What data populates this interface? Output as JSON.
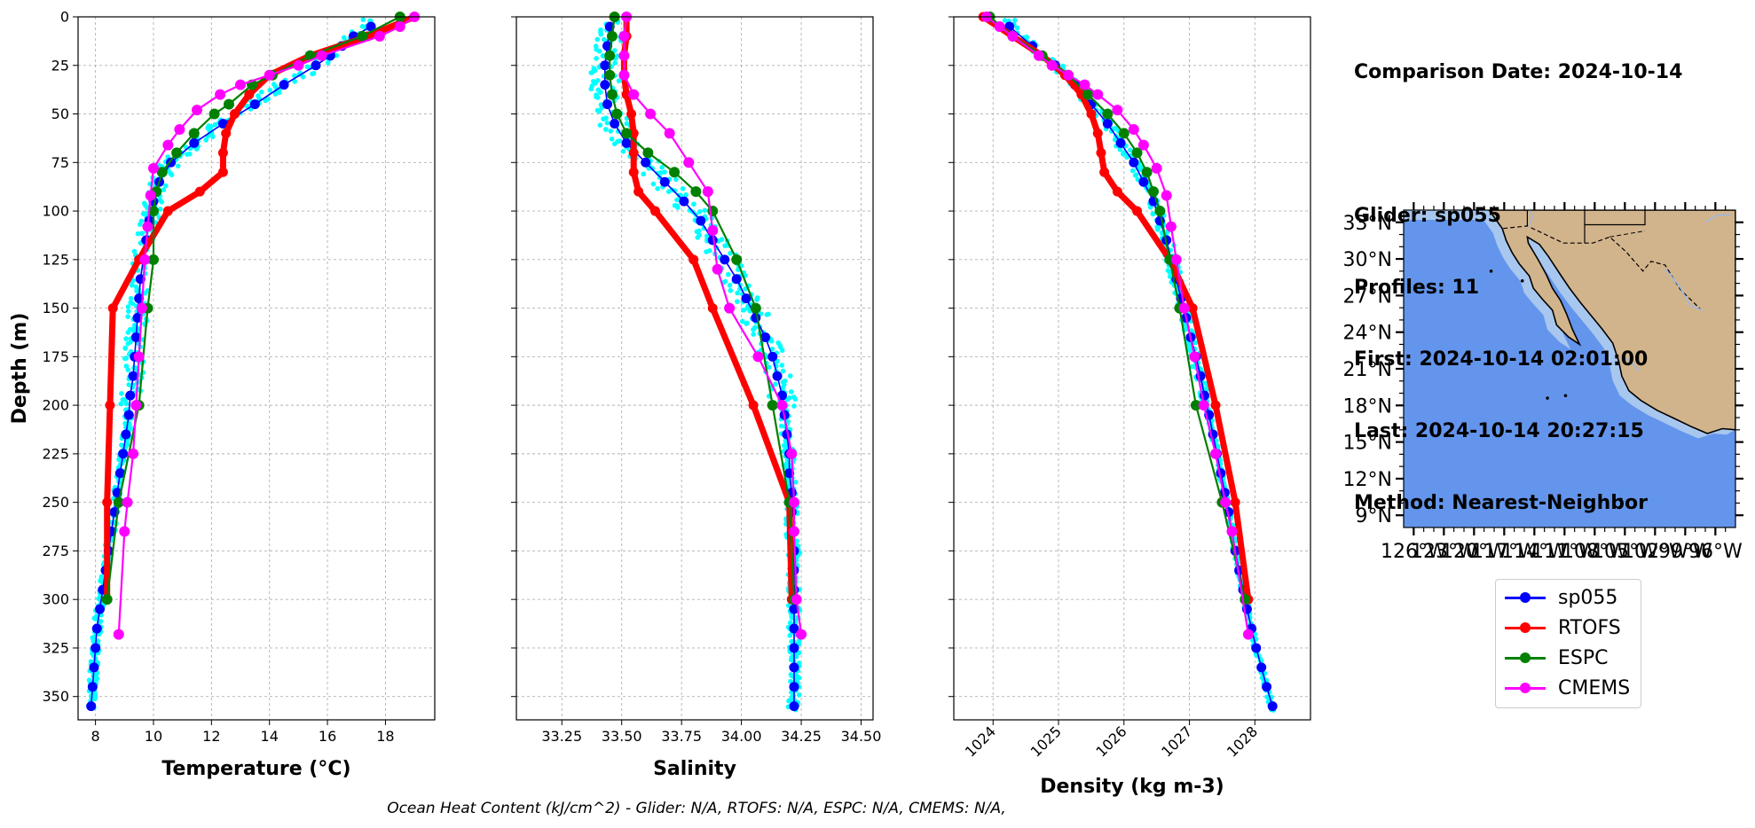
{
  "info": {
    "comparison_date": "Comparison Date: 2024-10-14",
    "glider": "Glider: sp055",
    "profiles": "Profiles: 11",
    "first": "First: 2024-10-14 02:01:00",
    "last": "Last: 2024-10-14 20:27:15",
    "method": "Method: Nearest-Neighbor"
  },
  "footer": "Ocean Heat Content (kJ/cm^2) - Glider: N/A,  RTOFS: N/A,  ESPC: N/A,  CMEMS: N/A,",
  "colors": {
    "glider": "#0000ff",
    "glider_points": "#00ffff",
    "rtofs": "#ff0000",
    "espc": "#008000",
    "cmems": "#ff00ff",
    "ocean": "#6495ed",
    "land": "#d2b48c",
    "shelf": "#a7c7ef"
  },
  "legend": [
    {
      "label": "sp055",
      "color": "#0000ff"
    },
    {
      "label": "RTOFS",
      "color": "#ff0000"
    },
    {
      "label": "ESPC",
      "color": "#008000"
    },
    {
      "label": "CMEMS",
      "color": "#ff00ff"
    }
  ],
  "chart_data": [
    {
      "type": "line",
      "xlabel": "Temperature (°C)",
      "ylabel": "Depth (m)",
      "xlim": [
        7.4,
        19.7
      ],
      "ylim": [
        362,
        0
      ],
      "xticks": [
        8,
        10,
        12,
        14,
        16,
        18
      ],
      "yticks": [
        0,
        25,
        50,
        75,
        100,
        125,
        150,
        175,
        200,
        225,
        250,
        275,
        300,
        325,
        350
      ],
      "grid": true,
      "series": [
        {
          "name": "sp055",
          "depth": [
            5,
            10,
            15,
            20,
            25,
            35,
            45,
            55,
            65,
            75,
            85,
            95,
            105,
            115,
            125,
            135,
            145,
            155,
            165,
            175,
            185,
            195,
            205,
            215,
            225,
            235,
            245,
            255,
            265,
            275,
            285,
            295,
            305,
            315,
            325,
            335,
            345,
            355
          ],
          "values": [
            17.5,
            16.9,
            16.5,
            16.1,
            15.6,
            14.5,
            13.5,
            12.4,
            11.4,
            10.6,
            10.2,
            10.0,
            9.85,
            9.75,
            9.65,
            9.55,
            9.5,
            9.45,
            9.4,
            9.35,
            9.3,
            9.2,
            9.15,
            9.05,
            8.95,
            8.85,
            8.75,
            8.65,
            8.55,
            8.45,
            8.35,
            8.25,
            8.15,
            8.05,
            8.0,
            7.95,
            7.9,
            7.85
          ]
        },
        {
          "name": "RTOFS",
          "depth": [
            0,
            10,
            20,
            30,
            40,
            50,
            60,
            70,
            80,
            90,
            100,
            125,
            150,
            200,
            250,
            300
          ],
          "values": [
            19.0,
            17.4,
            15.4,
            14.0,
            13.3,
            12.8,
            12.5,
            12.4,
            12.4,
            11.6,
            10.5,
            9.5,
            8.6,
            8.5,
            8.4,
            8.4
          ]
        },
        {
          "name": "ESPC",
          "depth": [
            0,
            10,
            20,
            30,
            35,
            45,
            50,
            60,
            70,
            80,
            90,
            100,
            125,
            150,
            200,
            250,
            300
          ],
          "values": [
            18.5,
            17.2,
            15.4,
            14.1,
            13.4,
            12.6,
            12.1,
            11.4,
            10.8,
            10.3,
            10.1,
            10.0,
            10.0,
            9.8,
            9.5,
            8.8,
            8.4
          ]
        },
        {
          "name": "CMEMS",
          "depth": [
            0,
            5,
            10,
            20,
            25,
            30,
            35,
            40,
            48,
            58,
            66,
            78,
            92,
            108,
            125,
            150,
            175,
            200,
            225,
            250,
            265,
            318
          ],
          "values": [
            19.0,
            18.5,
            17.8,
            15.8,
            15.0,
            14.0,
            13.0,
            12.3,
            11.5,
            10.9,
            10.5,
            10.0,
            9.9,
            9.8,
            9.7,
            9.6,
            9.5,
            9.4,
            9.3,
            9.1,
            9.0,
            8.8
          ]
        }
      ]
    },
    {
      "type": "line",
      "xlabel": "Salinity",
      "ylim": [
        362,
        0
      ],
      "xlim": [
        33.06,
        34.55
      ],
      "xticks": [
        33.25,
        33.5,
        33.75,
        34.0,
        34.25,
        34.5
      ],
      "xtick_labels": [
        "33.25",
        "33.50",
        "33.75",
        "34.00",
        "34.25",
        "34.50"
      ],
      "grid": true,
      "series": [
        {
          "name": "sp055",
          "depth": [
            5,
            15,
            25,
            35,
            45,
            55,
            65,
            75,
            85,
            95,
            105,
            115,
            125,
            135,
            145,
            155,
            165,
            175,
            185,
            195,
            205,
            215,
            225,
            235,
            245,
            255,
            265,
            275,
            285,
            295,
            305,
            315,
            325,
            335,
            345,
            355
          ],
          "values": [
            33.45,
            33.44,
            33.43,
            33.43,
            33.44,
            33.47,
            33.52,
            33.6,
            33.68,
            33.76,
            33.83,
            33.88,
            33.93,
            33.98,
            34.02,
            34.06,
            34.1,
            34.13,
            34.15,
            34.17,
            34.18,
            34.19,
            34.2,
            34.2,
            34.21,
            34.21,
            34.21,
            34.22,
            34.22,
            34.22,
            34.22,
            34.22,
            34.22,
            34.22,
            34.22,
            34.22
          ]
        },
        {
          "name": "RTOFS",
          "depth": [
            0,
            10,
            20,
            30,
            40,
            50,
            60,
            70,
            80,
            90,
            100,
            125,
            150,
            200,
            250,
            300
          ],
          "values": [
            33.52,
            33.52,
            33.51,
            33.51,
            33.52,
            33.54,
            33.55,
            33.55,
            33.55,
            33.57,
            33.64,
            33.8,
            33.88,
            34.05,
            34.2,
            34.21
          ]
        },
        {
          "name": "ESPC",
          "depth": [
            0,
            10,
            20,
            30,
            40,
            50,
            60,
            70,
            80,
            90,
            100,
            125,
            150,
            200,
            250,
            300
          ],
          "values": [
            33.47,
            33.46,
            33.45,
            33.45,
            33.46,
            33.48,
            33.52,
            33.61,
            33.72,
            33.81,
            33.88,
            33.98,
            34.06,
            34.13,
            34.2,
            34.22
          ]
        },
        {
          "name": "CMEMS",
          "depth": [
            0,
            10,
            20,
            30,
            40,
            50,
            60,
            75,
            90,
            110,
            130,
            150,
            175,
            200,
            225,
            250,
            265,
            300,
            318
          ],
          "values": [
            33.52,
            33.51,
            33.51,
            33.51,
            33.55,
            33.62,
            33.7,
            33.78,
            33.86,
            33.88,
            33.9,
            33.95,
            34.07,
            34.17,
            34.21,
            34.22,
            34.22,
            34.23,
            34.25
          ]
        }
      ]
    },
    {
      "type": "line",
      "xlabel": "Density (kg m-3)",
      "ylim": [
        362,
        0
      ],
      "xlim": [
        1023.4,
        1028.85
      ],
      "xticks": [
        1024,
        1025,
        1026,
        1027,
        1028
      ],
      "grid": true,
      "series": [
        {
          "name": "sp055",
          "depth": [
            5,
            15,
            25,
            35,
            45,
            55,
            65,
            75,
            85,
            95,
            105,
            115,
            125,
            135,
            145,
            155,
            165,
            175,
            185,
            195,
            205,
            215,
            225,
            235,
            245,
            255,
            265,
            275,
            285,
            295,
            305,
            315,
            325,
            335,
            345,
            355
          ],
          "values": [
            1024.25,
            1024.6,
            1024.95,
            1025.25,
            1025.5,
            1025.75,
            1025.95,
            1026.15,
            1026.3,
            1026.45,
            1026.55,
            1026.65,
            1026.72,
            1026.8,
            1026.87,
            1026.95,
            1027.02,
            1027.1,
            1027.17,
            1027.23,
            1027.3,
            1027.36,
            1027.42,
            1027.48,
            1027.54,
            1027.6,
            1027.65,
            1027.7,
            1027.76,
            1027.82,
            1027.88,
            1027.95,
            1028.02,
            1028.1,
            1028.18,
            1028.27
          ]
        },
        {
          "name": "RTOFS",
          "depth": [
            0,
            10,
            20,
            30,
            40,
            50,
            60,
            70,
            80,
            90,
            100,
            125,
            150,
            200,
            250,
            300
          ],
          "values": [
            1023.85,
            1024.3,
            1024.75,
            1025.1,
            1025.35,
            1025.5,
            1025.6,
            1025.65,
            1025.7,
            1025.9,
            1026.2,
            1026.7,
            1027.05,
            1027.4,
            1027.7,
            1027.9
          ]
        },
        {
          "name": "ESPC",
          "depth": [
            0,
            10,
            20,
            30,
            40,
            50,
            60,
            70,
            80,
            90,
            100,
            125,
            150,
            200,
            250,
            300
          ],
          "values": [
            1023.95,
            1024.3,
            1024.75,
            1025.15,
            1025.45,
            1025.75,
            1026.0,
            1026.2,
            1026.35,
            1026.45,
            1026.55,
            1026.7,
            1026.85,
            1027.1,
            1027.5,
            1027.85
          ]
        },
        {
          "name": "CMEMS",
          "depth": [
            0,
            5,
            10,
            20,
            25,
            30,
            35,
            40,
            48,
            58,
            66,
            78,
            92,
            108,
            125,
            150,
            175,
            200,
            225,
            250,
            265,
            318
          ],
          "values": [
            1023.9,
            1024.1,
            1024.3,
            1024.7,
            1024.9,
            1025.15,
            1025.4,
            1025.6,
            1025.9,
            1026.15,
            1026.3,
            1026.5,
            1026.65,
            1026.72,
            1026.8,
            1026.92,
            1027.08,
            1027.22,
            1027.4,
            1027.55,
            1027.65,
            1027.9
          ]
        }
      ]
    }
  ],
  "map": {
    "lat_labels": [
      "33°N",
      "30°N",
      "27°N",
      "24°N",
      "21°N",
      "18°N",
      "15°N",
      "12°N",
      "9°N"
    ],
    "lat_values": [
      33,
      30,
      27,
      24,
      21,
      18,
      15,
      12,
      9
    ],
    "lon_labels": [
      "126°W",
      "123°W",
      "120°W",
      "117°W",
      "114°W",
      "111°W",
      "108°W",
      "105°W",
      "102°W",
      "99°W",
      "96°W"
    ],
    "lon_values": [
      -126,
      -123,
      -120,
      -117,
      -114,
      -111,
      -108,
      -105,
      -102,
      -99,
      -96
    ],
    "lat_range": [
      8,
      34
    ],
    "lon_range": [
      -127,
      -94
    ]
  }
}
